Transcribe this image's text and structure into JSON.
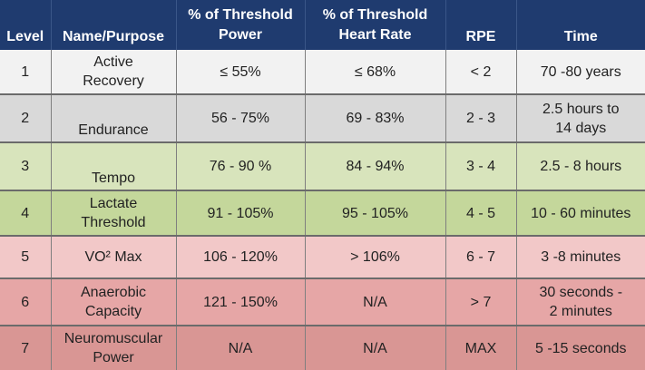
{
  "table": {
    "headers": {
      "level": "Level",
      "name": "Name/Purpose",
      "power_line1": "% of Threshold",
      "power_line2": "Power",
      "hr_line1": "% of Threshold",
      "hr_line2": "Heart Rate",
      "rpe": "RPE",
      "time": "Time"
    },
    "rows": [
      {
        "level": "1",
        "name_line1": "Active",
        "name_line2": "Recovery",
        "power": "≤ 55%",
        "hr": "≤ 68%",
        "rpe": "< 2",
        "time_line1": "70 -80 years",
        "time_line2": ""
      },
      {
        "level": "2",
        "name_line1": "",
        "name_line2": "Endurance",
        "power": "56 - 75%",
        "hr": "69 - 83%",
        "rpe": "2 - 3",
        "time_line1": "2.5 hours to",
        "time_line2": "14 days"
      },
      {
        "level": "3",
        "name_line1": "",
        "name_line2": "Tempo",
        "power": "76 - 90 %",
        "hr": "84 - 94%",
        "rpe": "3 - 4",
        "time_line1": "2.5 - 8 hours",
        "time_line2": ""
      },
      {
        "level": "4",
        "name_line1": "Lactate",
        "name_line2": "Threshold",
        "power": "91 - 105%",
        "hr": "95 - 105%",
        "rpe": "4 - 5",
        "time_line1": "10 - 60 minutes",
        "time_line2": ""
      },
      {
        "level": "5",
        "name_line1": "VO² Max",
        "name_line2": "",
        "power": "106 - 120%",
        "hr": "> 106%",
        "rpe": "6 - 7",
        "time_line1": "3 -8 minutes",
        "time_line2": ""
      },
      {
        "level": "6",
        "name_line1": "Anaerobic",
        "name_line2": "Capacity",
        "power": "121 - 150%",
        "hr": "N/A",
        "rpe": "> 7",
        "time_line1": "30 seconds -",
        "time_line2": "2 minutes"
      },
      {
        "level": "7",
        "name_line1": "Neuromuscular",
        "name_line2": "Power",
        "power": "N/A",
        "hr": "N/A",
        "rpe": "MAX",
        "time_line1": "5 -15 seconds",
        "time_line2": ""
      }
    ]
  }
}
